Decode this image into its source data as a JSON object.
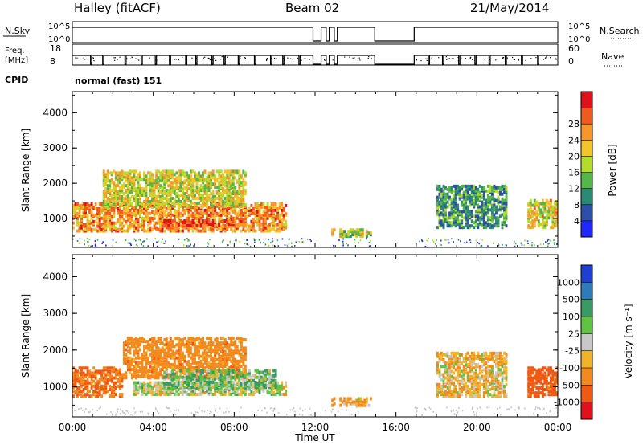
{
  "header": {
    "station": "Halley (fitACF)",
    "beam": "Beam 02",
    "date": "21/May/2014"
  },
  "strip_labels": {
    "nsky": "N.Sky",
    "nsearch": "N.Search",
    "freq_line1": "Freq.",
    "freq_line2": "[MHz]",
    "nave": "Nave",
    "cpid": "CPID",
    "cpid_value": "normal (fast) 151"
  },
  "strip_ticks": {
    "nsky_top": "10^5",
    "nsky_bottom": "10^0",
    "nsearch_top": "10^5",
    "nsearch_bottom": "10^0",
    "freq_top": "18",
    "freq_bottom": "8",
    "nave_top": "60",
    "nave_bottom": "0"
  },
  "chart_data": [
    {
      "type": "heatmap",
      "panel": "power",
      "ylabel": "Slant Range [km]",
      "ylim": [
        180,
        4600
      ],
      "xlim": [
        0,
        24
      ],
      "yticks": [
        "1000",
        "2000",
        "3000",
        "4000"
      ],
      "colorbar": {
        "label": "Power [dB]",
        "ticks": [
          "4",
          "8",
          "12",
          "16",
          "20",
          "24",
          "28"
        ],
        "colors": [
          "#1e28ff",
          "#2d4fa8",
          "#2a8a74",
          "#55b64a",
          "#b4dc2a",
          "#f3c42b",
          "#f7962a",
          "#ef5a1e",
          "#e0101c"
        ]
      },
      "regions": [
        {
          "t0": 0.0,
          "t1": 10.5,
          "r0": 600,
          "r1": 1400,
          "intensity": 0.75
        },
        {
          "t0": 1.5,
          "t1": 8.5,
          "r0": 1300,
          "r1": 2300,
          "intensity": 0.55
        },
        {
          "t0": 4.5,
          "t1": 8.0,
          "r0": 750,
          "r1": 900,
          "intensity": 0.95
        },
        {
          "t0": 12.7,
          "t1": 14.7,
          "r0": 450,
          "r1": 650,
          "intensity": 0.5
        },
        {
          "t0": 18.0,
          "t1": 21.5,
          "r0": 700,
          "r1": 1900,
          "intensity": 0.3
        },
        {
          "t0": 22.5,
          "t1": 24.0,
          "r0": 700,
          "r1": 1500,
          "intensity": 0.6
        }
      ]
    },
    {
      "type": "heatmap",
      "panel": "velocity",
      "ylabel": "Slant Range [km]",
      "xlabel": "Time UT",
      "ylim": [
        180,
        4600
      ],
      "xlim": [
        0,
        24
      ],
      "xticks": [
        "00:00",
        "04:00",
        "08:00",
        "12:00",
        "16:00",
        "20:00",
        "00:00"
      ],
      "yticks": [
        "1000",
        "2000",
        "3000",
        "4000"
      ],
      "colorbar": {
        "label": "Velocity [m s⁻¹]",
        "ticks": [
          "1000",
          "500",
          "100",
          "25",
          "-25",
          "-100",
          "-500",
          "-1000"
        ],
        "colors": [
          "#1e3fd1",
          "#2f7ab8",
          "#3a9a63",
          "#5ec442",
          "#c8c8c8",
          "#f0b42a",
          "#f28a1e",
          "#ee5a14",
          "#e0101c"
        ]
      },
      "regions": [
        {
          "t0": 0.0,
          "t1": 2.5,
          "r0": 700,
          "r1": 1500,
          "vel": -300
        },
        {
          "t0": 2.5,
          "t1": 8.5,
          "r0": 1200,
          "r1": 2300,
          "vel": -200
        },
        {
          "t0": 3.0,
          "t1": 10.5,
          "r0": 750,
          "r1": 1100,
          "vel": 0
        },
        {
          "t0": 4.5,
          "t1": 10.0,
          "r0": 900,
          "r1": 1400,
          "vel": 60
        },
        {
          "t0": 12.7,
          "t1": 14.7,
          "r0": 450,
          "r1": 650,
          "vel": -80
        },
        {
          "t0": 18.0,
          "t1": 21.5,
          "r0": 700,
          "r1": 1900,
          "vel": -60
        },
        {
          "t0": 22.5,
          "t1": 24.0,
          "r0": 700,
          "r1": 1500,
          "vel": -400
        }
      ]
    }
  ],
  "operation_gaps": [
    [
      11.9,
      12.3
    ],
    [
      12.55,
      12.7
    ],
    [
      12.95,
      13.1
    ],
    [
      14.95,
      16.9
    ]
  ]
}
